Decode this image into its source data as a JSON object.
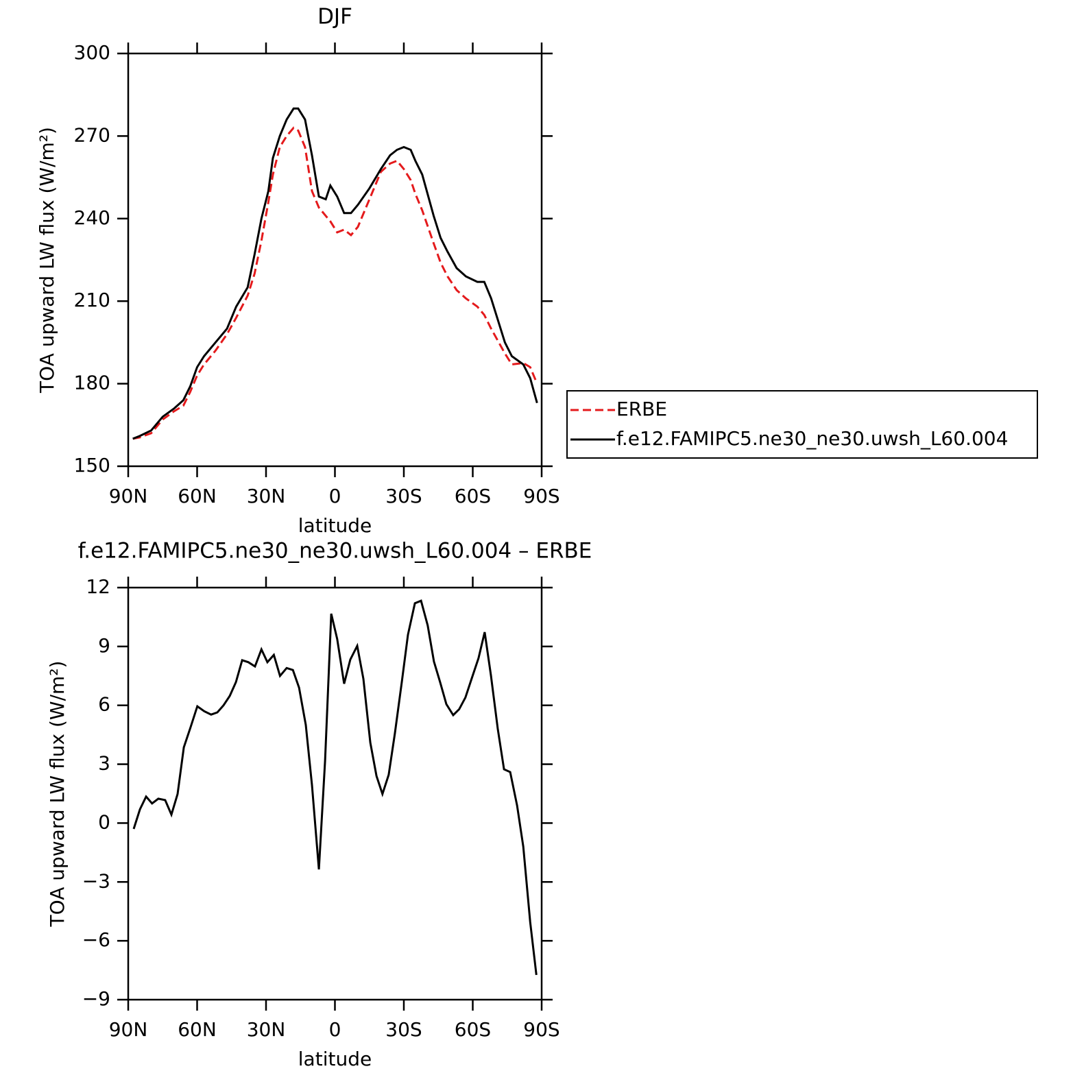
{
  "chart_data": [
    {
      "type": "line",
      "title": "DJF",
      "xlabel": "latitude",
      "ylabel": "TOA upward LW flux (W/m²)",
      "x": [
        88,
        85,
        80,
        75,
        70,
        66,
        63,
        60,
        57,
        52,
        47,
        43,
        38,
        35,
        32,
        29,
        27,
        24,
        21,
        18,
        16,
        13,
        10,
        7,
        4,
        2,
        -1,
        -4,
        -7,
        -10,
        -15,
        -20,
        -24,
        -27,
        -30,
        -33,
        -35,
        -38,
        -43,
        -46,
        -49,
        -53,
        -57,
        -62,
        -65,
        -68,
        -74,
        -77,
        -82,
        -85,
        -88
      ],
      "series": [
        {
          "name": "ERBE",
          "color": "#e41a1c",
          "linestyle": "dashed",
          "values": [
            160,
            160.5,
            162,
            167,
            170,
            172,
            177,
            183,
            187,
            192,
            198,
            204,
            212,
            220,
            232,
            246,
            256,
            266,
            270,
            273,
            272,
            266,
            250,
            244,
            241,
            239,
            235,
            236,
            234,
            237,
            247,
            257,
            260,
            261,
            258,
            254,
            249,
            243,
            231,
            224,
            219,
            214,
            211,
            208,
            205,
            200,
            191,
            187,
            187.5,
            186,
            180
          ]
        },
        {
          "name": "f.e12.FAMIPC5.ne30_ne30.uwsh_L60.004",
          "color": "#000000",
          "linestyle": "solid",
          "values": [
            160,
            161,
            163,
            168,
            171,
            174,
            179,
            186,
            190,
            195,
            200,
            208,
            215,
            227,
            240,
            250,
            262,
            270,
            276,
            280,
            280,
            276,
            263,
            248,
            247,
            252,
            248,
            242,
            242,
            245,
            251,
            258,
            263,
            265,
            266,
            265,
            261,
            256,
            241,
            233,
            228,
            222,
            219,
            217,
            217,
            211,
            195,
            190,
            187,
            182,
            173
          ]
        }
      ],
      "xlim": [
        90,
        -90
      ],
      "xticks": [
        {
          "value": 90,
          "label": "90N"
        },
        {
          "value": 60,
          "label": "60N"
        },
        {
          "value": 30,
          "label": "30N"
        },
        0,
        {
          "value": -30,
          "label": "30S"
        },
        {
          "value": -60,
          "label": "60S"
        },
        {
          "value": -90,
          "label": "90S"
        }
      ],
      "ylim": [
        150,
        300
      ],
      "yticks": [
        150,
        180,
        210,
        240,
        270,
        300
      ],
      "legend": "right"
    },
    {
      "type": "line",
      "title": "f.e12.FAMIPC5.ne30_ne30.uwsh_L60.004 – ERBE",
      "xlabel": "latitude",
      "ylabel": "TOA upward LW flux (W/m²)",
      "x": [
        87.6,
        84.9,
        82.2,
        79.6,
        76.9,
        73.9,
        71.2,
        68.5,
        65.8,
        62.8,
        59.9,
        56.9,
        53.9,
        51.2,
        48.5,
        45.8,
        43.1,
        40.4,
        37.7,
        34.8,
        32,
        29.4,
        26.6,
        23.9,
        21,
        18.3,
        15.6,
        12.7,
        10,
        7,
        4.3,
        1.6,
        -1,
        -4,
        -6.7,
        -9.7,
        -12.4,
        -15.4,
        -18.1,
        -20.7,
        -23.4,
        -26.1,
        -29.1,
        -31.8,
        -34.8,
        -37.5,
        -40.4,
        -43.1,
        -45.8,
        -48.5,
        -51.5,
        -54.1,
        -56.8,
        -59.5,
        -62.5,
        -65.2,
        -67.9,
        -70.9,
        -73.6,
        -76.3,
        -79.3,
        -82,
        -85,
        -87.7
      ],
      "series": [
        {
          "name": "f.e12.FAMIPC5.ne30_ne30.uwsh_L60.004 – ERBE",
          "color": "#000000",
          "linestyle": "solid",
          "values": [
            -0.3,
            0.7,
            1.35,
            1.0,
            1.24,
            1.17,
            0.43,
            1.48,
            3.86,
            4.9,
            5.95,
            5.7,
            5.53,
            5.64,
            6.0,
            6.48,
            7.18,
            8.3,
            8.2,
            7.98,
            8.85,
            8.2,
            8.57,
            7.5,
            7.9,
            7.8,
            6.9,
            5.0,
            1.94,
            -2.36,
            3.16,
            10.67,
            9.38,
            7.1,
            8.33,
            9.03,
            7.35,
            4.1,
            2.4,
            1.48,
            2.46,
            4.56,
            7.18,
            9.6,
            11.2,
            11.33,
            10.07,
            8.23,
            7.18,
            6.06,
            5.5,
            5.8,
            6.4,
            7.35,
            8.4,
            9.73,
            7.53,
            4.8,
            2.74,
            2.6,
            0.89,
            -1.2,
            -5.05,
            -7.74
          ]
        }
      ],
      "xlim": [
        90,
        -90
      ],
      "xticks": [
        {
          "value": 90,
          "label": "90N"
        },
        {
          "value": 60,
          "label": "60N"
        },
        {
          "value": 30,
          "label": "30N"
        },
        0,
        {
          "value": -30,
          "label": "30S"
        },
        {
          "value": -60,
          "label": "60S"
        },
        {
          "value": -90,
          "label": "90S"
        }
      ],
      "ylim": [
        -9,
        12
      ],
      "yticks": [
        {
          "value": -9,
          "label": "−9"
        },
        {
          "value": -6,
          "label": "−6"
        },
        {
          "value": -3,
          "label": "−3"
        },
        0,
        3,
        6,
        9,
        12
      ]
    }
  ]
}
